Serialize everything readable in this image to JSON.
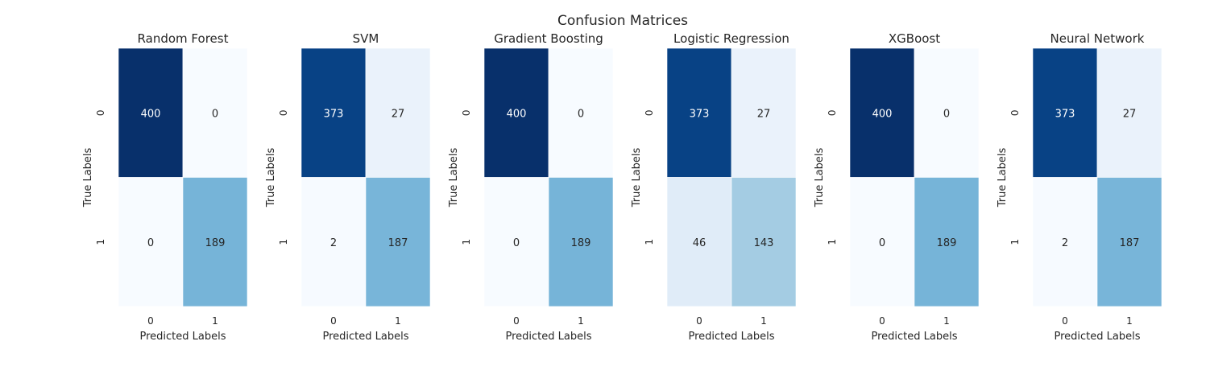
{
  "figure": {
    "title": "Confusion Matrices"
  },
  "chart_data": {
    "type": "heatmap",
    "colormap": "Blues",
    "colorscale_max": 400,
    "row_tick_labels": [
      "0",
      "1"
    ],
    "col_tick_labels": [
      "0",
      "1"
    ],
    "xlabel": "Predicted Labels",
    "ylabel": "True Labels",
    "charts": [
      {
        "title": "Random Forest",
        "matrix": [
          [
            400,
            0
          ],
          [
            0,
            189
          ]
        ]
      },
      {
        "title": "SVM",
        "matrix": [
          [
            373,
            27
          ],
          [
            2,
            187
          ]
        ]
      },
      {
        "title": "Gradient Boosting",
        "matrix": [
          [
            400,
            0
          ],
          [
            0,
            189
          ]
        ]
      },
      {
        "title": "Logistic Regression",
        "matrix": [
          [
            373,
            27
          ],
          [
            46,
            143
          ]
        ]
      },
      {
        "title": "XGBoost",
        "matrix": [
          [
            400,
            0
          ],
          [
            0,
            189
          ]
        ]
      },
      {
        "title": "Neural Network",
        "matrix": [
          [
            373,
            27
          ],
          [
            2,
            187
          ]
        ]
      }
    ]
  }
}
